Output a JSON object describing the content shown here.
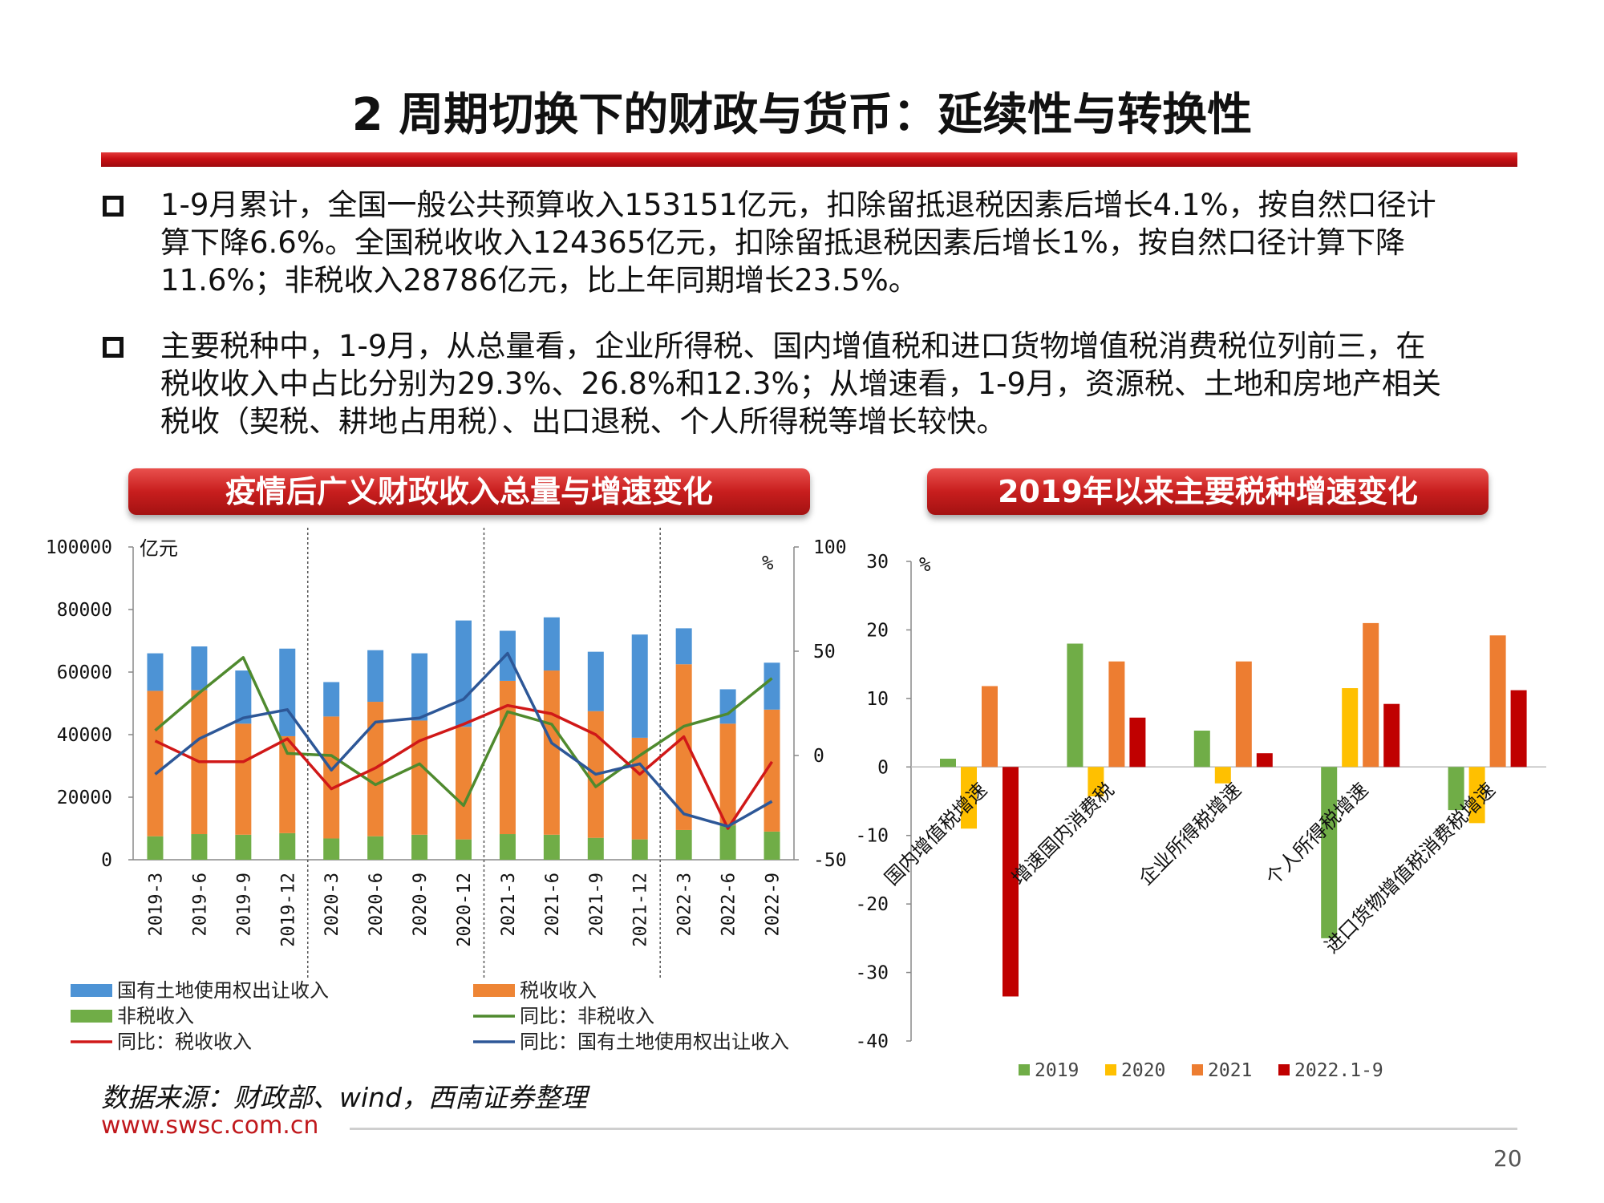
{
  "page": {
    "title": "2 周期切换下的财政与货币：延续性与转换性",
    "bullets": [
      {
        "lines": [
          "1-9月累计，全国一般公共预算收入153151亿元，扣除留抵退税因素后增长4.1%，按自然口径计",
          "算下降6.6%。全国税收收入124365亿元，扣除留抵退税因素后增长1%，按自然口径计算下降",
          "11.6%；非税收入28786亿元，比上年同期增长23.5%。"
        ]
      },
      {
        "lines": [
          "主要税种中，1-9月，从总量看，企业所得税、国内增值税和进口货物增值税消费税位列前三，在",
          "税收收入中占比分别为29.3%、26.8%和12.3%；从增速看，1-9月，资源税、土地和房地产相关",
          "税收（契税、耕地占用税）、出口退税、个人所得税等增长较快。"
        ]
      }
    ],
    "source": "数据来源：财政部、wind，西南证券整理",
    "url": "www.swsc.com.cn",
    "page_number": "20"
  },
  "colors": {
    "blue_bar": "#4d93d5",
    "orange_bar": "#ee8535",
    "green_bar": "#70ad47",
    "green_line": "#4f8a2e",
    "red_line": "#d01818",
    "blue_line": "#2d5797",
    "y2019": "#70ad47",
    "y2020": "#ffc000",
    "y2021": "#ed7d31",
    "y2022": "#c00000"
  },
  "chart_data": [
    {
      "type": "bar",
      "panel_title": "疫情后广义财政收入总量与增速变化",
      "left_unit": "亿元",
      "right_unit": "%",
      "ylim": [
        0,
        100000
      ],
      "y_ticks": [
        0,
        20000,
        40000,
        60000,
        80000,
        100000
      ],
      "y2lim": [
        -50,
        100
      ],
      "y2_ticks": [
        -50,
        0,
        50,
        100
      ],
      "categories": [
        "2019-3",
        "2019-6",
        "2019-9",
        "2019-12",
        "2020-3",
        "2020-6",
        "2020-9",
        "2020-12",
        "2021-3",
        "2021-6",
        "2021-9",
        "2021-12",
        "2022-3",
        "2022-6",
        "2022-9"
      ],
      "stacked_series": [
        {
          "name": "非税收入",
          "values": [
            7500,
            8200,
            8000,
            8500,
            6800,
            7500,
            8000,
            6500,
            8200,
            8000,
            7000,
            6500,
            9500,
            11000,
            9000
          ]
        },
        {
          "name": "税收收入",
          "values": [
            46500,
            46000,
            35500,
            31000,
            39000,
            43000,
            36500,
            36000,
            49000,
            52500,
            40500,
            32500,
            53000,
            32500,
            39000
          ]
        },
        {
          "name": "国有土地使用权出让收入",
          "values": [
            12000,
            14000,
            17000,
            28000,
            11000,
            16500,
            21500,
            34000,
            16000,
            17000,
            19000,
            33000,
            11500,
            11000,
            15000
          ]
        }
      ],
      "line_series": [
        {
          "name": "同比：非税收入",
          "values": [
            12,
            30,
            47,
            1,
            0,
            -14,
            -4,
            -24,
            21,
            15,
            -15,
            0,
            14,
            20,
            37
          ]
        },
        {
          "name": "同比：税收收入",
          "values": [
            7,
            -3,
            -3,
            8,
            -16,
            -6,
            7,
            15,
            24,
            20,
            10,
            -9,
            9,
            -35,
            -3
          ]
        },
        {
          "name": "同比：国有土地使用权出让收入",
          "values": [
            -9,
            8,
            18,
            22,
            -7,
            16,
            18,
            27,
            49,
            6,
            -9,
            -4,
            -28,
            -34,
            -22
          ]
        }
      ],
      "legend": [
        "国有土地使用权出让收入",
        "税收收入",
        "非税收入",
        "同比：非税收入",
        "同比：税收收入",
        "同比：国有土地使用权出让收入"
      ]
    },
    {
      "type": "bar",
      "panel_title": "2019年以来主要税种增速变化",
      "unit": "%",
      "ylim": [
        -40,
        30
      ],
      "y_ticks": [
        -40,
        -30,
        -20,
        -10,
        0,
        10,
        20,
        30
      ],
      "categories": [
        "国内增值税增速",
        "增速国内消费税",
        "企业所得税增速",
        "个人所得税增速",
        "进口货物增值税消费税增速"
      ],
      "series": [
        {
          "name": "2019",
          "values": [
            1.2,
            18,
            5.3,
            -25,
            -6.3
          ]
        },
        {
          "name": "2020",
          "values": [
            -9,
            -4.3,
            -2.4,
            11.5,
            -8.2
          ]
        },
        {
          "name": "2021",
          "values": [
            11.8,
            15.4,
            15.4,
            21,
            19.2
          ]
        },
        {
          "name": "2022.1-9",
          "values": [
            -33.5,
            7.2,
            2,
            9.2,
            11.2
          ]
        }
      ]
    }
  ]
}
